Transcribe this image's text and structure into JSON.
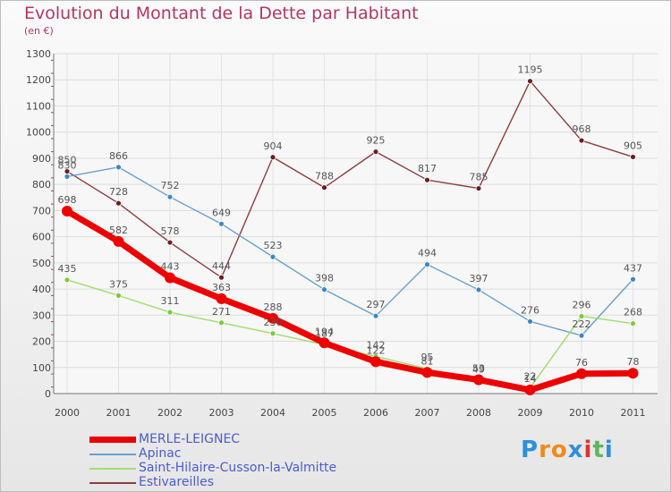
{
  "title": "Evolution du Montant de la Dette par Habitant",
  "subtitle": "(en €)",
  "logo": {
    "text": "Proxiti",
    "colors": [
      "#2f8fd8",
      "#f08a1c",
      "#f08a1c",
      "#2f8fd8",
      "#e0322e",
      "#5cb85c",
      "#2f8fd8"
    ]
  },
  "chart_data": {
    "type": "line",
    "categories": [
      "2000",
      "2001",
      "2002",
      "2003",
      "2004",
      "2005",
      "2006",
      "2007",
      "2008",
      "2009",
      "2010",
      "2011"
    ],
    "ylim": [
      0,
      1300
    ],
    "yticks": [
      0,
      100,
      200,
      300,
      400,
      500,
      600,
      700,
      800,
      900,
      1000,
      1100,
      1200,
      1300
    ],
    "grid": true,
    "legend_position": "bottom-left",
    "series": [
      {
        "name": "MERLE-LEIGNEC",
        "color": "#ee0000",
        "marker": "#ee0000",
        "values": [
          698,
          582,
          443,
          363,
          288,
          194,
          122,
          81,
          53,
          14,
          76,
          78
        ],
        "bold": true
      },
      {
        "name": "Apinac",
        "color": "#6a9fd0",
        "marker": "#3d86c8",
        "values": [
          830,
          866,
          752,
          649,
          523,
          398,
          297,
          494,
          397,
          276,
          222,
          437
        ]
      },
      {
        "name": "Saint-Hilaire-Cusson-la-Valmitte",
        "color": "#9fdc6e",
        "marker": "#7acb3a",
        "values": [
          435,
          375,
          311,
          271,
          230,
          187,
          142,
          95,
          49,
          22,
          296,
          268
        ]
      },
      {
        "name": "Estivareilles",
        "color": "#8b3e3e",
        "marker": "#6b1f1f",
        "values": [
          850,
          728,
          578,
          444,
          904,
          788,
          925,
          817,
          785,
          1195,
          968,
          905
        ]
      }
    ]
  }
}
